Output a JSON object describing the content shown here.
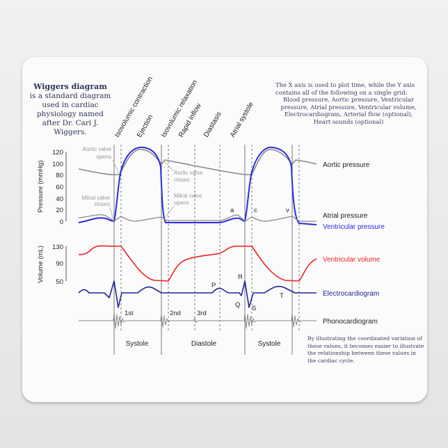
{
  "title": {
    "bold": "Wiggers diagram",
    "rest": "is a standard diagram used in cardiac physiology named after Dr. Carl J. Wiggers."
  },
  "description": {
    "intro": "The X axis is used to plot time, while the Y axis contains all of the following on a single grid:",
    "list": "Blood pressure, Aortic pressure, Ventricular pressure, Atrial pressure, Ventricular volume, Electrocardiogram, Arterial flow (optional), Heart sounds (optional)"
  },
  "conclusion": "By illustrating the coordinated variation of these values, it becomes easier to illustrate the relationship between these values in the cardiac cycle.",
  "phases": [
    "Isovolumic contraction",
    "Ejection",
    "Isovolumic relaxation",
    "Rapid inflow",
    "Diastasis",
    "Atrial systole"
  ],
  "pressure_axis": {
    "label": "Pressure (mmHg)",
    "ticks": [
      "120",
      "100",
      "80",
      "60",
      "40",
      "20",
      "0"
    ]
  },
  "volume_axis": {
    "label": "Volume (mL)",
    "ticks": [
      "130",
      "90",
      "50"
    ]
  },
  "annotations": {
    "aortic_opens": [
      "Aortic valve",
      "opens"
    ],
    "aortic_closes": [
      "Aortic valve",
      "closes"
    ],
    "mitral_closes": [
      "Mitral valve",
      "closes"
    ],
    "mitral_opens": [
      "Mitral valve",
      "opens"
    ],
    "a": "a",
    "c": "c",
    "v": "v",
    "P": "P",
    "Q": "Q",
    "R": "R",
    "S": "S",
    "T": "T",
    "s1": "1st",
    "s2": "2nd",
    "s3": "3rd"
  },
  "series": {
    "aortic": "Aortic pressure",
    "atrial": "Atrial pressure",
    "ventricular": "Ventricular pressure",
    "volume": "Ventricular volume",
    "ecg": "Electrocardiogram",
    "phono": "Phonocardiogram"
  },
  "periods": [
    "Systole",
    "Diastole",
    "Systole"
  ],
  "colors": {
    "ventricular": "#2222dd",
    "volume": "#ee2222",
    "ecg": "#22229a",
    "aortic": "#888888",
    "text": "#3a3f63"
  }
}
